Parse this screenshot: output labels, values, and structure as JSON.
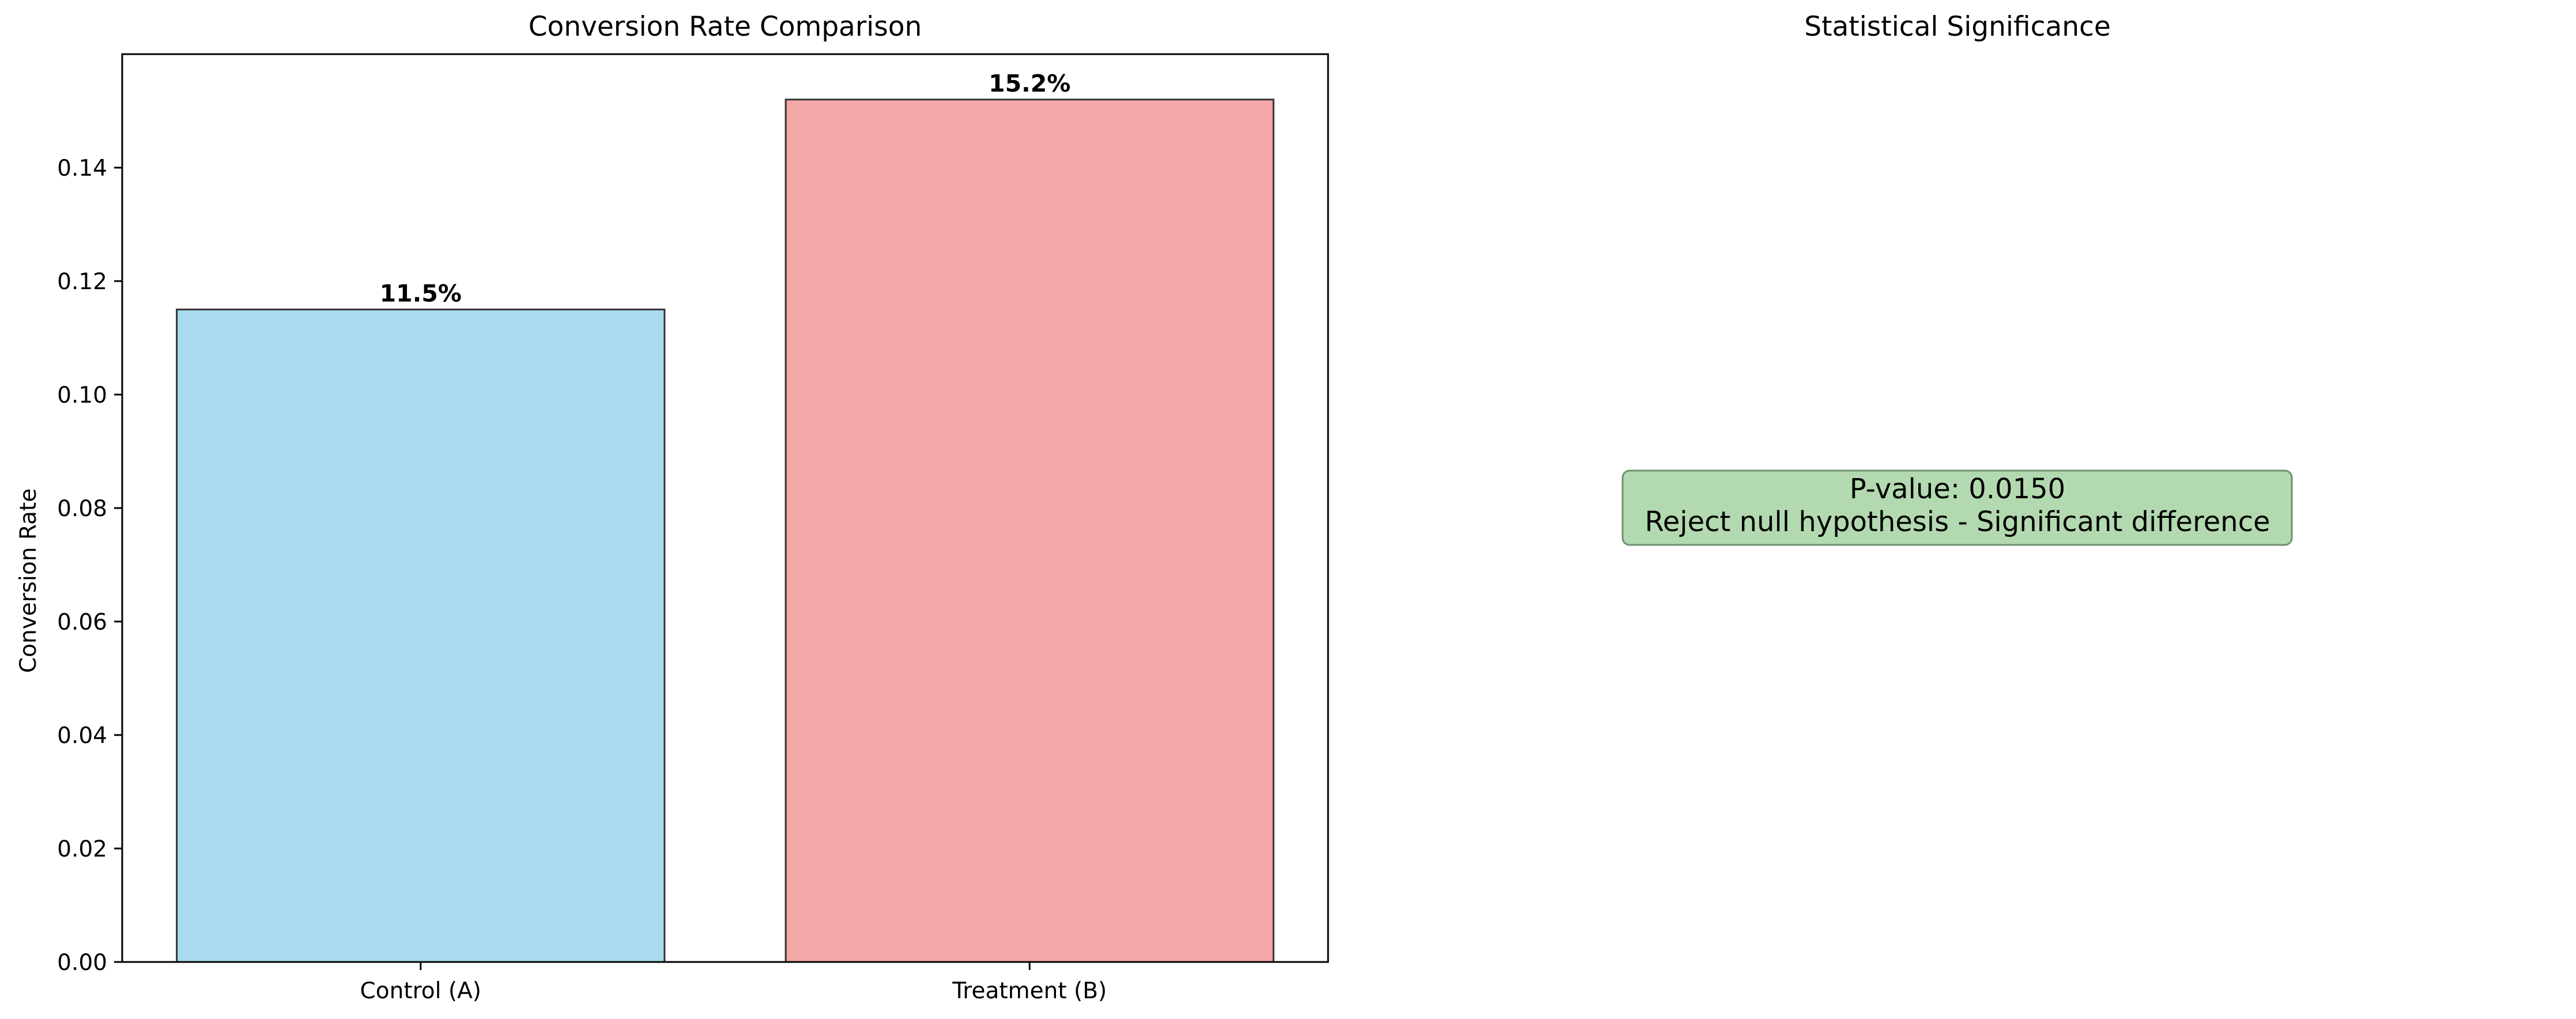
{
  "chart_data": [
    {
      "type": "bar",
      "title": "Conversion Rate Comparison",
      "xlabel": "",
      "ylabel": "Conversion Rate",
      "categories": [
        "Control (A)",
        "Treatment (B)"
      ],
      "values": [
        0.115,
        0.152
      ],
      "data_labels": [
        "11.5%",
        "15.2%"
      ],
      "colors": [
        "#a8dcee",
        "#f3a7a7"
      ],
      "edge_color": "#333333",
      "ylim": [
        0,
        0.16
      ],
      "yticks": [
        0.0,
        0.02,
        0.04,
        0.06,
        0.08,
        0.1,
        0.12,
        0.14
      ],
      "ytick_labels": [
        "0.00",
        "0.02",
        "0.04",
        "0.06",
        "0.08",
        "0.10",
        "0.12",
        "0.14"
      ],
      "grid": false,
      "legend": "none"
    },
    {
      "type": "table",
      "title": "Statistical Significance",
      "axis": "off",
      "annotation": {
        "lines": [
          "P-value: 0.0150",
          "Reject null hypothesis - Significant difference"
        ],
        "box_color": "#b3d9b0",
        "edge_color": "#6f8f6d"
      }
    }
  ]
}
